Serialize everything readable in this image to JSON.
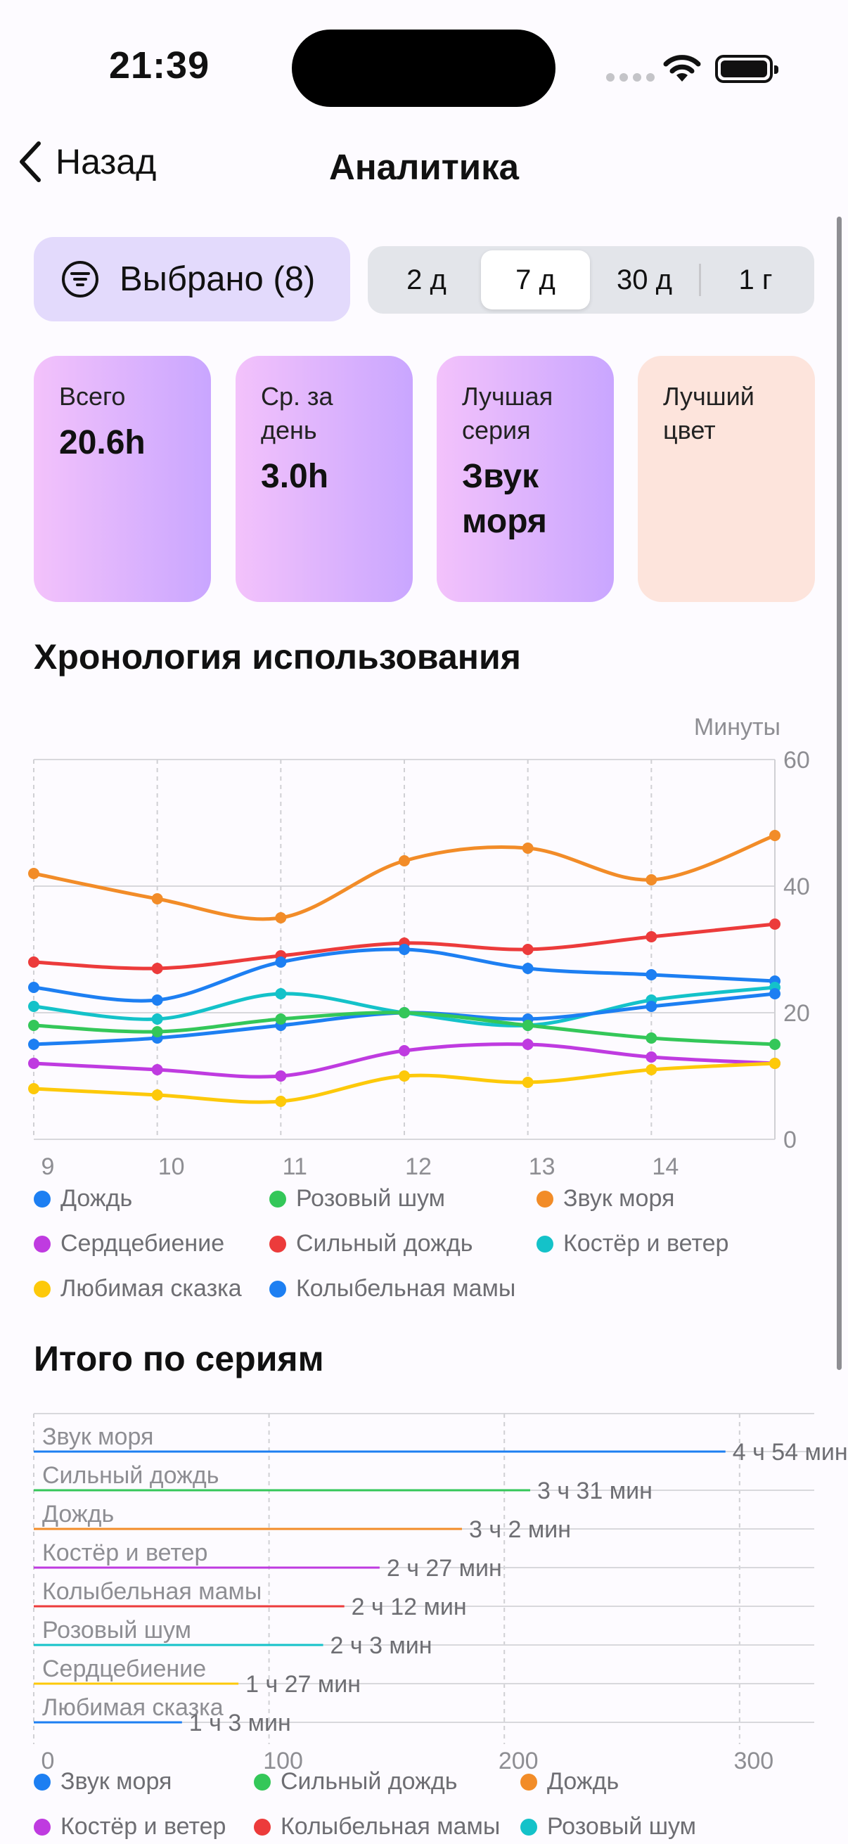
{
  "status": {
    "time": "21:39"
  },
  "nav": {
    "back_label": "Назад",
    "title": "Аналитика"
  },
  "filter": {
    "label": "Выбрано (8)"
  },
  "periods": {
    "options": [
      "2 д",
      "7 д",
      "30 д",
      "1 г"
    ],
    "selected": "7 д"
  },
  "stats": [
    {
      "label": "Всего",
      "value": "20.6h"
    },
    {
      "label": "Ср. за день",
      "value": "3.0h"
    },
    {
      "label": "Лучшая серия",
      "value": "Звук моря"
    },
    {
      "label": "Лучший цвет",
      "value": ""
    }
  ],
  "timeline": {
    "title": "Хронология использования",
    "legend": [
      "Дождь",
      "Розовый шум",
      "Звук моря",
      "Сердцебиение",
      "Сильный дождь",
      "Костёр и ветер",
      "Любимая сказка",
      "Колыбельная мамы"
    ]
  },
  "totals": {
    "title": "Итого по сериям",
    "legend": [
      "Звук моря",
      "Сильный дождь",
      "Дождь",
      "Костёр и ветер",
      "Колыбельная мамы",
      "Розовый шум"
    ]
  },
  "chart_data": [
    {
      "type": "line",
      "title": "Хронология использования",
      "ylabel": "Минуты",
      "ylim": [
        0,
        60
      ],
      "yticks": [
        0,
        20,
        40,
        60
      ],
      "x": [
        9,
        10,
        11,
        12,
        13,
        14,
        15
      ],
      "xticks": [
        9,
        10,
        11,
        12,
        13,
        14
      ],
      "grid": true,
      "series": [
        {
          "name": "Звук моря",
          "color": "#f28c28",
          "values": [
            42,
            38,
            35,
            44,
            46,
            41,
            48
          ]
        },
        {
          "name": "Сильный дождь",
          "color": "#ec3b3b",
          "values": [
            28,
            27,
            29,
            31,
            30,
            32,
            34
          ]
        },
        {
          "name": "Дождь",
          "color": "#1d7ff2",
          "values": [
            24,
            22,
            28,
            30,
            27,
            26,
            25
          ]
        },
        {
          "name": "Костёр и ветер",
          "color": "#14c2c9",
          "values": [
            21,
            19,
            23,
            20,
            18,
            22,
            24
          ]
        },
        {
          "name": "Колыбельная мамы",
          "color": "#1d7ff2",
          "values": [
            15,
            16,
            18,
            20,
            19,
            21,
            23
          ]
        },
        {
          "name": "Розовый шум",
          "color": "#34c759",
          "values": [
            18,
            17,
            19,
            20,
            18,
            16,
            15
          ]
        },
        {
          "name": "Сердцебиение",
          "color": "#bf3be0",
          "values": [
            12,
            11,
            10,
            14,
            15,
            13,
            12
          ]
        },
        {
          "name": "Любимая сказка",
          "color": "#fdc90a",
          "values": [
            8,
            7,
            6,
            10,
            9,
            11,
            12
          ]
        }
      ]
    },
    {
      "type": "bar",
      "title": "Итого по сериям",
      "xlim": [
        0,
        315
      ],
      "xticks": [
        0,
        100,
        200,
        300
      ],
      "categories": [
        "Звук моря",
        "Сильный дождь",
        "Дождь",
        "Костёр и ветер",
        "Колыбельная мамы",
        "Розовый шум",
        "Сердцебиение",
        "Любимая сказка"
      ],
      "values": [
        294,
        211,
        182,
        147,
        132,
        123,
        87,
        63
      ],
      "value_labels": [
        "4 ч 54 мин",
        "3 ч 31 мин",
        "3 ч 2 мин",
        "2 ч 27 мин",
        "2 ч 12 мин",
        "2 ч 3 мин",
        "1 ч 27 мин",
        "1 ч 3 мин"
      ],
      "colors": [
        "#1d7ff2",
        "#34c759",
        "#f28c28",
        "#bf3be0",
        "#ec3b3b",
        "#14c2c9",
        "#fdc90a",
        "#1d7ff2"
      ],
      "grid": true
    }
  ],
  "legend_colors": {
    "timeline": [
      "#1d7ff2",
      "#34c759",
      "#f28c28",
      "#bf3be0",
      "#ec3b3b",
      "#14c2c9",
      "#fdc90a",
      "#1d7ff2"
    ],
    "totals": [
      "#1d7ff2",
      "#34c759",
      "#f28c28",
      "#bf3be0",
      "#ec3b3b",
      "#14c2c9"
    ]
  }
}
